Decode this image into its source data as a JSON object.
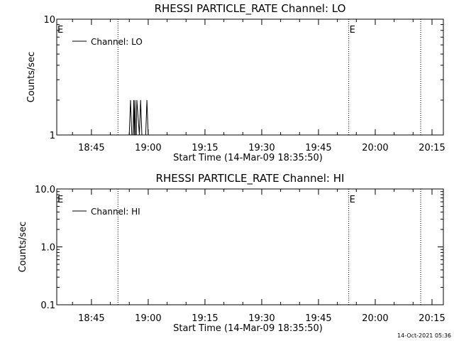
{
  "chart_data": [
    {
      "type": "line",
      "title": "RHESSI PARTICLE_RATE Channel: LO",
      "xlabel": "Start Time (14-Mar-09 18:35:50)",
      "ylabel": "Counts/sec",
      "y_scale": "log",
      "ylim": [
        1,
        10
      ],
      "y_tick_labels": [
        {
          "value": 1,
          "label": "1"
        },
        {
          "value": 10,
          "label": "10"
        }
      ],
      "x_tick_labels": [
        "18:45",
        "19:00",
        "19:15",
        "19:30",
        "19:45",
        "20:00",
        "20:15"
      ],
      "legend_position": "top-left",
      "series": [
        {
          "name": "Channel: LO",
          "x": [
            "18:55:00",
            "18:55:20",
            "18:55:40",
            "18:56:00",
            "18:56:10",
            "18:56:20",
            "18:56:30",
            "18:56:40",
            "18:56:50",
            "18:57:00",
            "18:57:40",
            "18:58:00",
            "18:58:20",
            "18:59:20",
            "18:59:40",
            "19:00:00"
          ],
          "y": [
            1,
            2,
            1,
            1,
            2,
            1,
            2,
            1,
            1,
            2,
            1,
            2,
            1,
            1,
            2,
            1
          ]
        }
      ],
      "event_markers": [
        {
          "time": "18:52:00",
          "label": "E"
        },
        {
          "time": "19:53:00",
          "label": "E"
        },
        {
          "time": "20:12:00",
          "label": ""
        }
      ]
    },
    {
      "type": "line",
      "title": "RHESSI PARTICLE_RATE Channel: HI",
      "xlabel": "Start Time (14-Mar-09 18:35:50)",
      "ylabel": "Counts/sec",
      "y_scale": "log",
      "ylim": [
        0.1,
        10
      ],
      "y_tick_labels": [
        {
          "value": 0.1,
          "label": "0.1"
        },
        {
          "value": 1,
          "label": "1.0"
        },
        {
          "value": 10,
          "label": "10.0"
        }
      ],
      "x_tick_labels": [
        "18:45",
        "19:00",
        "19:15",
        "19:30",
        "19:45",
        "20:00",
        "20:15"
      ],
      "legend_position": "top-left",
      "series": [
        {
          "name": "Channel: HI",
          "x": [],
          "y": []
        }
      ],
      "event_markers": [
        {
          "time": "18:52:00",
          "label": "E"
        },
        {
          "time": "19:53:00",
          "label": "E"
        },
        {
          "time": "20:12:00",
          "label": ""
        }
      ]
    }
  ],
  "footer": {
    "timestamp": "14-Oct-2021 05:36"
  }
}
